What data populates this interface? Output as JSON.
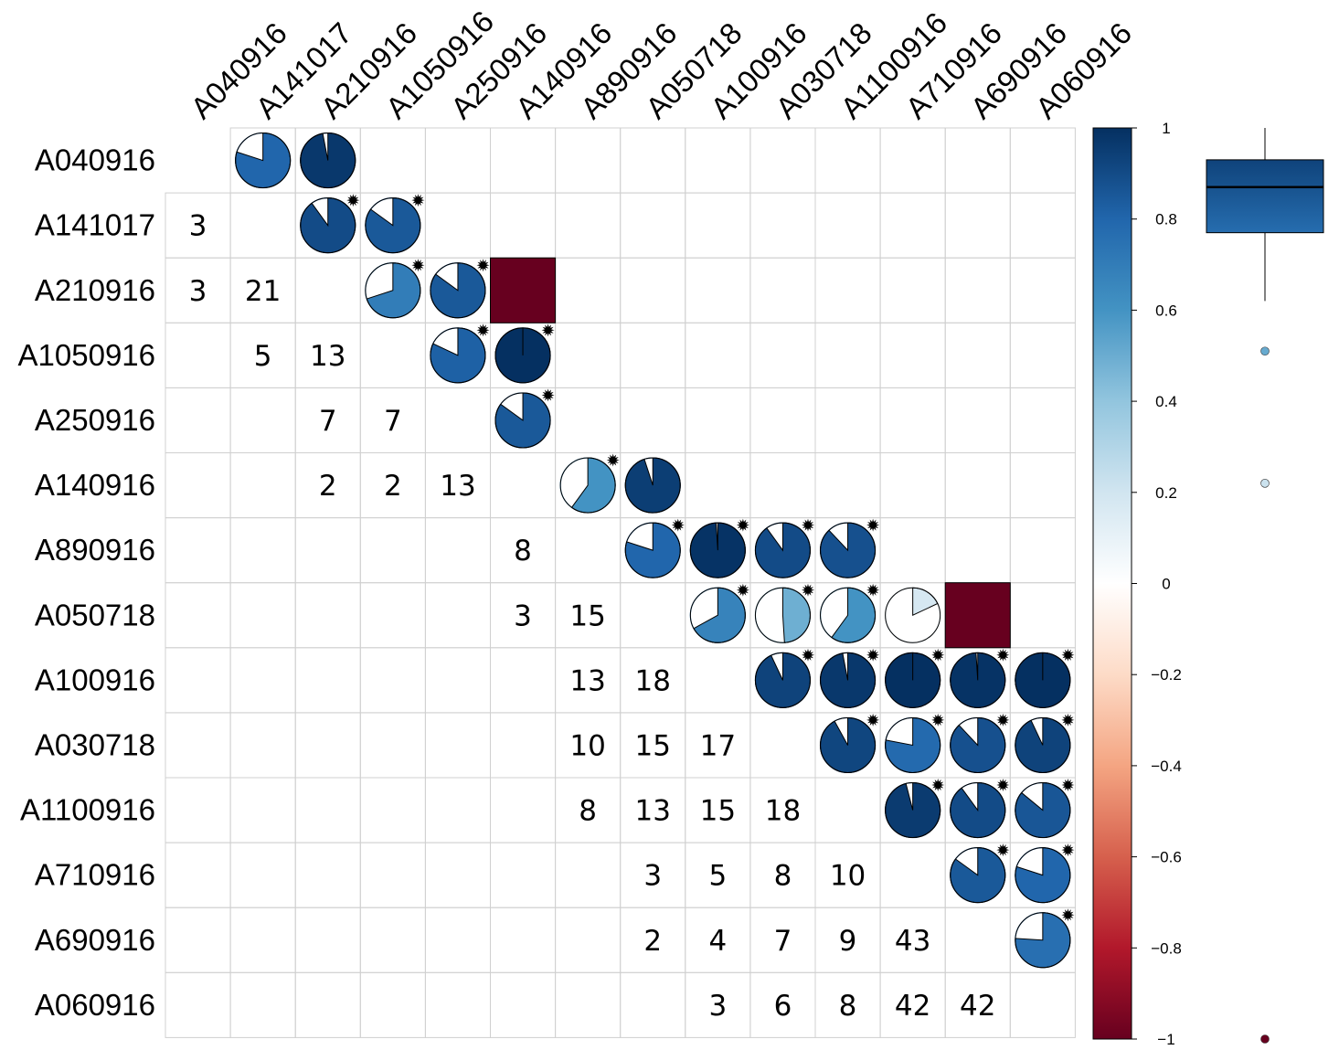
{
  "chart_data": {
    "type": "heatmap",
    "title": "",
    "labels": [
      "A040916",
      "A141017",
      "A210916",
      "A1050916",
      "A250916",
      "A140916",
      "A890916",
      "A050718",
      "A100916",
      "A030718",
      "A1100916",
      "A710916",
      "A690916",
      "A060916"
    ],
    "correlations_upper": [
      {
        "row": "A040916",
        "col": "A141017",
        "r": 0.8,
        "sig": false
      },
      {
        "row": "A040916",
        "col": "A210916",
        "r": 0.97,
        "sig": false
      },
      {
        "row": "A141017",
        "col": "A210916",
        "r": 0.9,
        "sig": true
      },
      {
        "row": "A141017",
        "col": "A1050916",
        "r": 0.85,
        "sig": true
      },
      {
        "row": "A210916",
        "col": "A1050916",
        "r": 0.7,
        "sig": true
      },
      {
        "row": "A210916",
        "col": "A250916",
        "r": 0.85,
        "sig": true
      },
      {
        "row": "A210916",
        "col": "A140916",
        "r": -1.0,
        "sig": false
      },
      {
        "row": "A1050916",
        "col": "A250916",
        "r": 0.82,
        "sig": true
      },
      {
        "row": "A1050916",
        "col": "A140916",
        "r": 1.0,
        "sig": true
      },
      {
        "row": "A250916",
        "col": "A140916",
        "r": 0.85,
        "sig": true
      },
      {
        "row": "A140916",
        "col": "A890916",
        "r": 0.6,
        "sig": true
      },
      {
        "row": "A140916",
        "col": "A050718",
        "r": 0.95,
        "sig": false
      },
      {
        "row": "A890916",
        "col": "A050718",
        "r": 0.8,
        "sig": true
      },
      {
        "row": "A890916",
        "col": "A100916",
        "r": 0.99,
        "sig": true
      },
      {
        "row": "A890916",
        "col": "A030718",
        "r": 0.9,
        "sig": true
      },
      {
        "row": "A890916",
        "col": "A1100916",
        "r": 0.88,
        "sig": true
      },
      {
        "row": "A050718",
        "col": "A100916",
        "r": 0.67,
        "sig": true
      },
      {
        "row": "A050718",
        "col": "A030718",
        "r": 0.49,
        "sig": true
      },
      {
        "row": "A050718",
        "col": "A1100916",
        "r": 0.6,
        "sig": true
      },
      {
        "row": "A050718",
        "col": "A710916",
        "r": 0.18,
        "sig": false
      },
      {
        "row": "A050718",
        "col": "A690916",
        "r": -1.0,
        "sig": false
      },
      {
        "row": "A100916",
        "col": "A030718",
        "r": 0.93,
        "sig": true
      },
      {
        "row": "A100916",
        "col": "A1100916",
        "r": 0.97,
        "sig": true
      },
      {
        "row": "A100916",
        "col": "A710916",
        "r": 1.0,
        "sig": true
      },
      {
        "row": "A100916",
        "col": "A690916",
        "r": 0.99,
        "sig": true
      },
      {
        "row": "A100916",
        "col": "A060916",
        "r": 1.0,
        "sig": true
      },
      {
        "row": "A030718",
        "col": "A1100916",
        "r": 0.92,
        "sig": true
      },
      {
        "row": "A030718",
        "col": "A710916",
        "r": 0.78,
        "sig": true
      },
      {
        "row": "A030718",
        "col": "A690916",
        "r": 0.88,
        "sig": true
      },
      {
        "row": "A030718",
        "col": "A060916",
        "r": 0.93,
        "sig": true
      },
      {
        "row": "A1100916",
        "col": "A710916",
        "r": 0.96,
        "sig": true
      },
      {
        "row": "A1100916",
        "col": "A690916",
        "r": 0.9,
        "sig": true
      },
      {
        "row": "A1100916",
        "col": "A060916",
        "r": 0.86,
        "sig": true
      },
      {
        "row": "A710916",
        "col": "A690916",
        "r": 0.85,
        "sig": true
      },
      {
        "row": "A710916",
        "col": "A060916",
        "r": 0.8,
        "sig": true
      },
      {
        "row": "A690916",
        "col": "A060916",
        "r": 0.76,
        "sig": true
      }
    ],
    "counts_lower": [
      {
        "row": "A141017",
        "col": "A040916",
        "n": "3"
      },
      {
        "row": "A210916",
        "col": "A040916",
        "n": "3"
      },
      {
        "row": "A210916",
        "col": "A141017",
        "n": "21"
      },
      {
        "row": "A1050916",
        "col": "A141017",
        "n": "5"
      },
      {
        "row": "A1050916",
        "col": "A210916",
        "n": "13"
      },
      {
        "row": "A250916",
        "col": "A210916",
        "n": "7"
      },
      {
        "row": "A250916",
        "col": "A1050916",
        "n": "7"
      },
      {
        "row": "A140916",
        "col": "A210916",
        "n": "2"
      },
      {
        "row": "A140916",
        "col": "A1050916",
        "n": "2"
      },
      {
        "row": "A140916",
        "col": "A250916",
        "n": "13"
      },
      {
        "row": "A890916",
        "col": "A140916",
        "n": "8"
      },
      {
        "row": "A050718",
        "col": "A140916",
        "n": "3"
      },
      {
        "row": "A050718",
        "col": "A890916",
        "n": "15"
      },
      {
        "row": "A100916",
        "col": "A890916",
        "n": "13"
      },
      {
        "row": "A100916",
        "col": "A050718",
        "n": "18"
      },
      {
        "row": "A030718",
        "col": "A890916",
        "n": "10"
      },
      {
        "row": "A030718",
        "col": "A050718",
        "n": "15"
      },
      {
        "row": "A030718",
        "col": "A100916",
        "n": "17"
      },
      {
        "row": "A1100916",
        "col": "A890916",
        "n": "8"
      },
      {
        "row": "A1100916",
        "col": "A050718",
        "n": "13"
      },
      {
        "row": "A1100916",
        "col": "A100916",
        "n": "15"
      },
      {
        "row": "A1100916",
        "col": "A030718",
        "n": "18"
      },
      {
        "row": "A710916",
        "col": "A050718",
        "n": "3"
      },
      {
        "row": "A710916",
        "col": "A100916",
        "n": "5"
      },
      {
        "row": "A710916",
        "col": "A030718",
        "n": "8"
      },
      {
        "row": "A710916",
        "col": "A1100916",
        "n": "10"
      },
      {
        "row": "A690916",
        "col": "A050718",
        "n": "2"
      },
      {
        "row": "A690916",
        "col": "A100916",
        "n": "4"
      },
      {
        "row": "A690916",
        "col": "A030718",
        "n": "7"
      },
      {
        "row": "A690916",
        "col": "A1100916",
        "n": "9"
      },
      {
        "row": "A690916",
        "col": "A710916",
        "n": "43"
      },
      {
        "row": "A060916",
        "col": "A100916",
        "n": "3"
      },
      {
        "row": "A060916",
        "col": "A030718",
        "n": "6"
      },
      {
        "row": "A060916",
        "col": "A1100916",
        "n": "8"
      },
      {
        "row": "A060916",
        "col": "A710916",
        "n": "42"
      },
      {
        "row": "A060916",
        "col": "A690916",
        "n": "42"
      }
    ],
    "colorbar": {
      "range": [
        -1,
        1
      ],
      "ticks": [
        {
          "value": 1,
          "label": "1"
        },
        {
          "value": 0.8,
          "label": "0.8"
        },
        {
          "value": 0.6,
          "label": "0.6"
        },
        {
          "value": 0.4,
          "label": "0.4"
        },
        {
          "value": 0.2,
          "label": "0.2"
        },
        {
          "value": 0,
          "label": "0"
        },
        {
          "value": -0.2,
          "label": "−0.2"
        },
        {
          "value": -0.4,
          "label": "−0.4"
        },
        {
          "value": -0.6,
          "label": "−0.6"
        },
        {
          "value": -0.8,
          "label": "−0.8"
        },
        {
          "value": -1,
          "label": "−1"
        }
      ],
      "colors": [
        "#67001F",
        "#B2182B",
        "#D6604D",
        "#F4A582",
        "#FDDBC7",
        "#FFFFFF",
        "#D1E5F0",
        "#92C5DE",
        "#4393C3",
        "#2166AC",
        "#053061"
      ]
    },
    "boxplot": {
      "q1": 0.77,
      "median": 0.87,
      "q3": 0.93,
      "whisker_low": 0.62,
      "whisker_high": 1.0,
      "outliers": [
        0.51,
        0.22,
        -1.0
      ]
    },
    "significance_marker": "star"
  }
}
